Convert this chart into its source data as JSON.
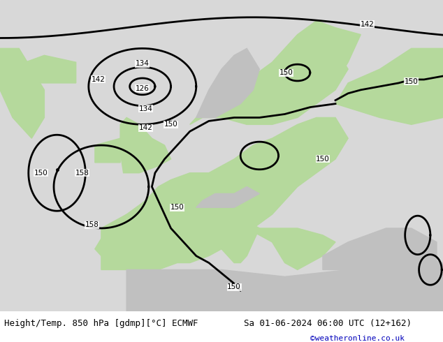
{
  "title_left": "Height/Temp. 850 hPa [gdmp][°C] ECMWF",
  "title_right": "Sa 01-06-2024 06:00 UTC (12+162)",
  "credit": "©weatheronline.co.uk",
  "ocean_color": "#d8d8d8",
  "land_green_color": "#b5d99c",
  "land_gray_color": "#c0c0c0",
  "contour_color": "#000000",
  "contour_lw": 2.0,
  "label_fontsize": 7.5,
  "title_fontsize": 9,
  "credit_fontsize": 8,
  "credit_color": "#0000bb",
  "fig_width": 6.34,
  "fig_height": 4.9,
  "dpi": 100,
  "xlim": [
    -25,
    45
  ],
  "ylim": [
    30,
    75
  ]
}
